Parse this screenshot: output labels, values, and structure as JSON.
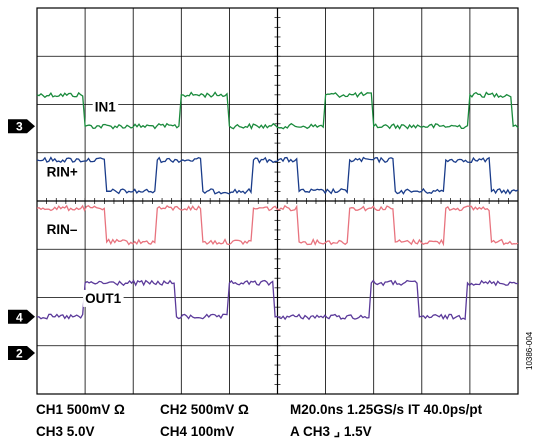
{
  "chart_data": {
    "type": "line",
    "title": "",
    "xlabel": "",
    "ylabel": "",
    "grid": true,
    "grid_divisions": {
      "x": 10,
      "y": 8
    },
    "xlim": [
      0,
      10
    ],
    "ylim": [
      0,
      8
    ],
    "series": [
      {
        "name": "IN1",
        "color": "#1a8a3c",
        "x": [
          0,
          0.95,
          1.0,
          2.95,
          3.0,
          3.95,
          4.0,
          5.95,
          6.0,
          6.95,
          7.0,
          8.95,
          9.0,
          9.85,
          9.9,
          10.0
        ],
        "y": [
          6.2,
          6.2,
          5.55,
          5.55,
          6.2,
          6.2,
          5.55,
          5.55,
          6.2,
          6.2,
          5.55,
          5.55,
          6.2,
          6.2,
          5.55,
          5.55
        ]
      },
      {
        "name": "RIN+",
        "color": "#1a3c8a",
        "x": [
          0,
          1.4,
          1.45,
          2.45,
          2.5,
          3.4,
          3.45,
          4.45,
          4.5,
          5.4,
          5.45,
          6.45,
          6.5,
          7.4,
          7.45,
          8.45,
          8.5,
          9.4,
          9.45,
          10.0
        ],
        "y": [
          4.85,
          4.85,
          4.2,
          4.2,
          4.85,
          4.85,
          4.2,
          4.2,
          4.85,
          4.85,
          4.2,
          4.2,
          4.85,
          4.85,
          4.2,
          4.2,
          4.85,
          4.85,
          4.2,
          4.2
        ]
      },
      {
        "name": "RIN–",
        "color": "#e8737e",
        "x": [
          0,
          1.4,
          1.45,
          2.45,
          2.5,
          3.4,
          3.45,
          4.45,
          4.5,
          5.4,
          5.45,
          6.45,
          6.5,
          7.4,
          7.45,
          8.45,
          8.5,
          9.4,
          9.45,
          10.0
        ],
        "y": [
          3.85,
          3.85,
          3.15,
          3.15,
          3.85,
          3.85,
          3.15,
          3.15,
          3.85,
          3.85,
          3.15,
          3.15,
          3.85,
          3.85,
          3.15,
          3.15,
          3.85,
          3.85,
          3.15,
          3.15
        ]
      },
      {
        "name": "OUT1",
        "color": "#5b3a9a",
        "x": [
          0,
          0.95,
          1.0,
          2.85,
          2.9,
          3.95,
          4.0,
          4.9,
          4.95,
          6.9,
          6.95,
          7.9,
          7.95,
          8.9,
          8.95,
          10.0
        ],
        "y": [
          1.6,
          1.6,
          2.3,
          2.3,
          1.6,
          1.6,
          2.3,
          2.3,
          1.6,
          1.6,
          2.3,
          2.3,
          1.6,
          1.6,
          2.3,
          2.3
        ]
      }
    ],
    "markers": [
      {
        "label": "3",
        "level": 5.55
      },
      {
        "label": "4",
        "level": 1.6
      },
      {
        "label": "2",
        "level": 0.85
      }
    ]
  },
  "settings": {
    "ch1": "CH1  500mV Ω",
    "ch2": "CH2  500mV Ω",
    "timebase": "M20.0ns  1.25GS/s  IT 40.0ps/pt",
    "ch3": "CH3  5.0V",
    "ch4": "CH4  100mV",
    "trigger": "A  CH3  ⌟ 1.5V"
  },
  "figure_id": "10386-004",
  "colors": {
    "grid": "#000000",
    "background": "#ffffff",
    "marker_bg": "#000000",
    "marker_fg": "#ffffff"
  }
}
